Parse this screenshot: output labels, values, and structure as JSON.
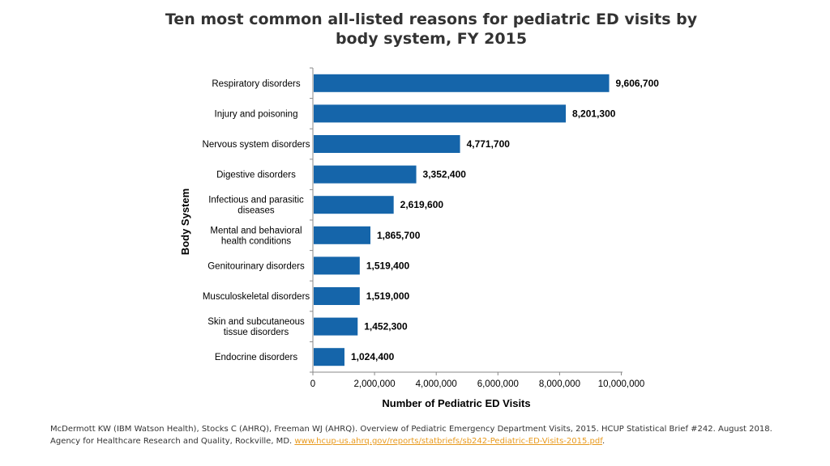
{
  "title_lines": [
    "Ten most common all-listed reasons for pediatric ED visits by",
    "body system, FY 2015"
  ],
  "chart_data": {
    "type": "bar",
    "orientation": "horizontal",
    "title": "Ten most common all-listed reasons for pediatric ED visits by body system, FY 2015",
    "xlabel": "Number of Pediatric ED Visits",
    "ylabel": "Body System",
    "categories": [
      [
        "Respiratory disorders"
      ],
      [
        "Injury and poisoning"
      ],
      [
        "Nervous system disorders"
      ],
      [
        "Digestive disorders"
      ],
      [
        "Infectious and parasitic",
        "diseases"
      ],
      [
        "Mental and behavioral",
        "health conditions"
      ],
      [
        "Genitourinary disorders"
      ],
      [
        "Musculoskeletal disorders"
      ],
      [
        "Skin and subcutaneous",
        "tissue disorders"
      ],
      [
        "Endocrine disorders"
      ]
    ],
    "values": [
      9606700,
      8201300,
      4771700,
      3352400,
      2619600,
      1865700,
      1519400,
      1519000,
      1452300,
      1024400
    ],
    "value_labels": [
      "9,606,700",
      "8,201,300",
      "4,771,700",
      "3,352,400",
      "2,619,600",
      "1,865,700",
      "1,519,400",
      "1,519,000",
      "1,452,300",
      "1,024,400"
    ],
    "xticks": [
      0,
      2000000,
      4000000,
      6000000,
      8000000,
      10000000
    ],
    "xtick_labels": [
      "0",
      "2,000,000",
      "4,000,000",
      "6,000,000",
      "8,000,000",
      "10,000,000"
    ],
    "xlim": [
      0,
      10000000
    ],
    "bar_color": "#1565AA",
    "grid": false,
    "legend": "none"
  },
  "footer": {
    "text": "McDermott KW (IBM Watson Health), Stocks C (AHRQ), Freeman WJ (AHRQ). Overview of Pediatric Emergency Department Visits, 2015. HCUP Statistical Brief #242. August 2018. Agency for Healthcare Research and Quality, Rockville, MD. ",
    "link_text": "www.hcup-us.ahrq.gov/reports/statbriefs/sb242-Pediatric-ED-Visits-2015.pdf",
    "link_color": "#E89A1E",
    "end": "."
  }
}
